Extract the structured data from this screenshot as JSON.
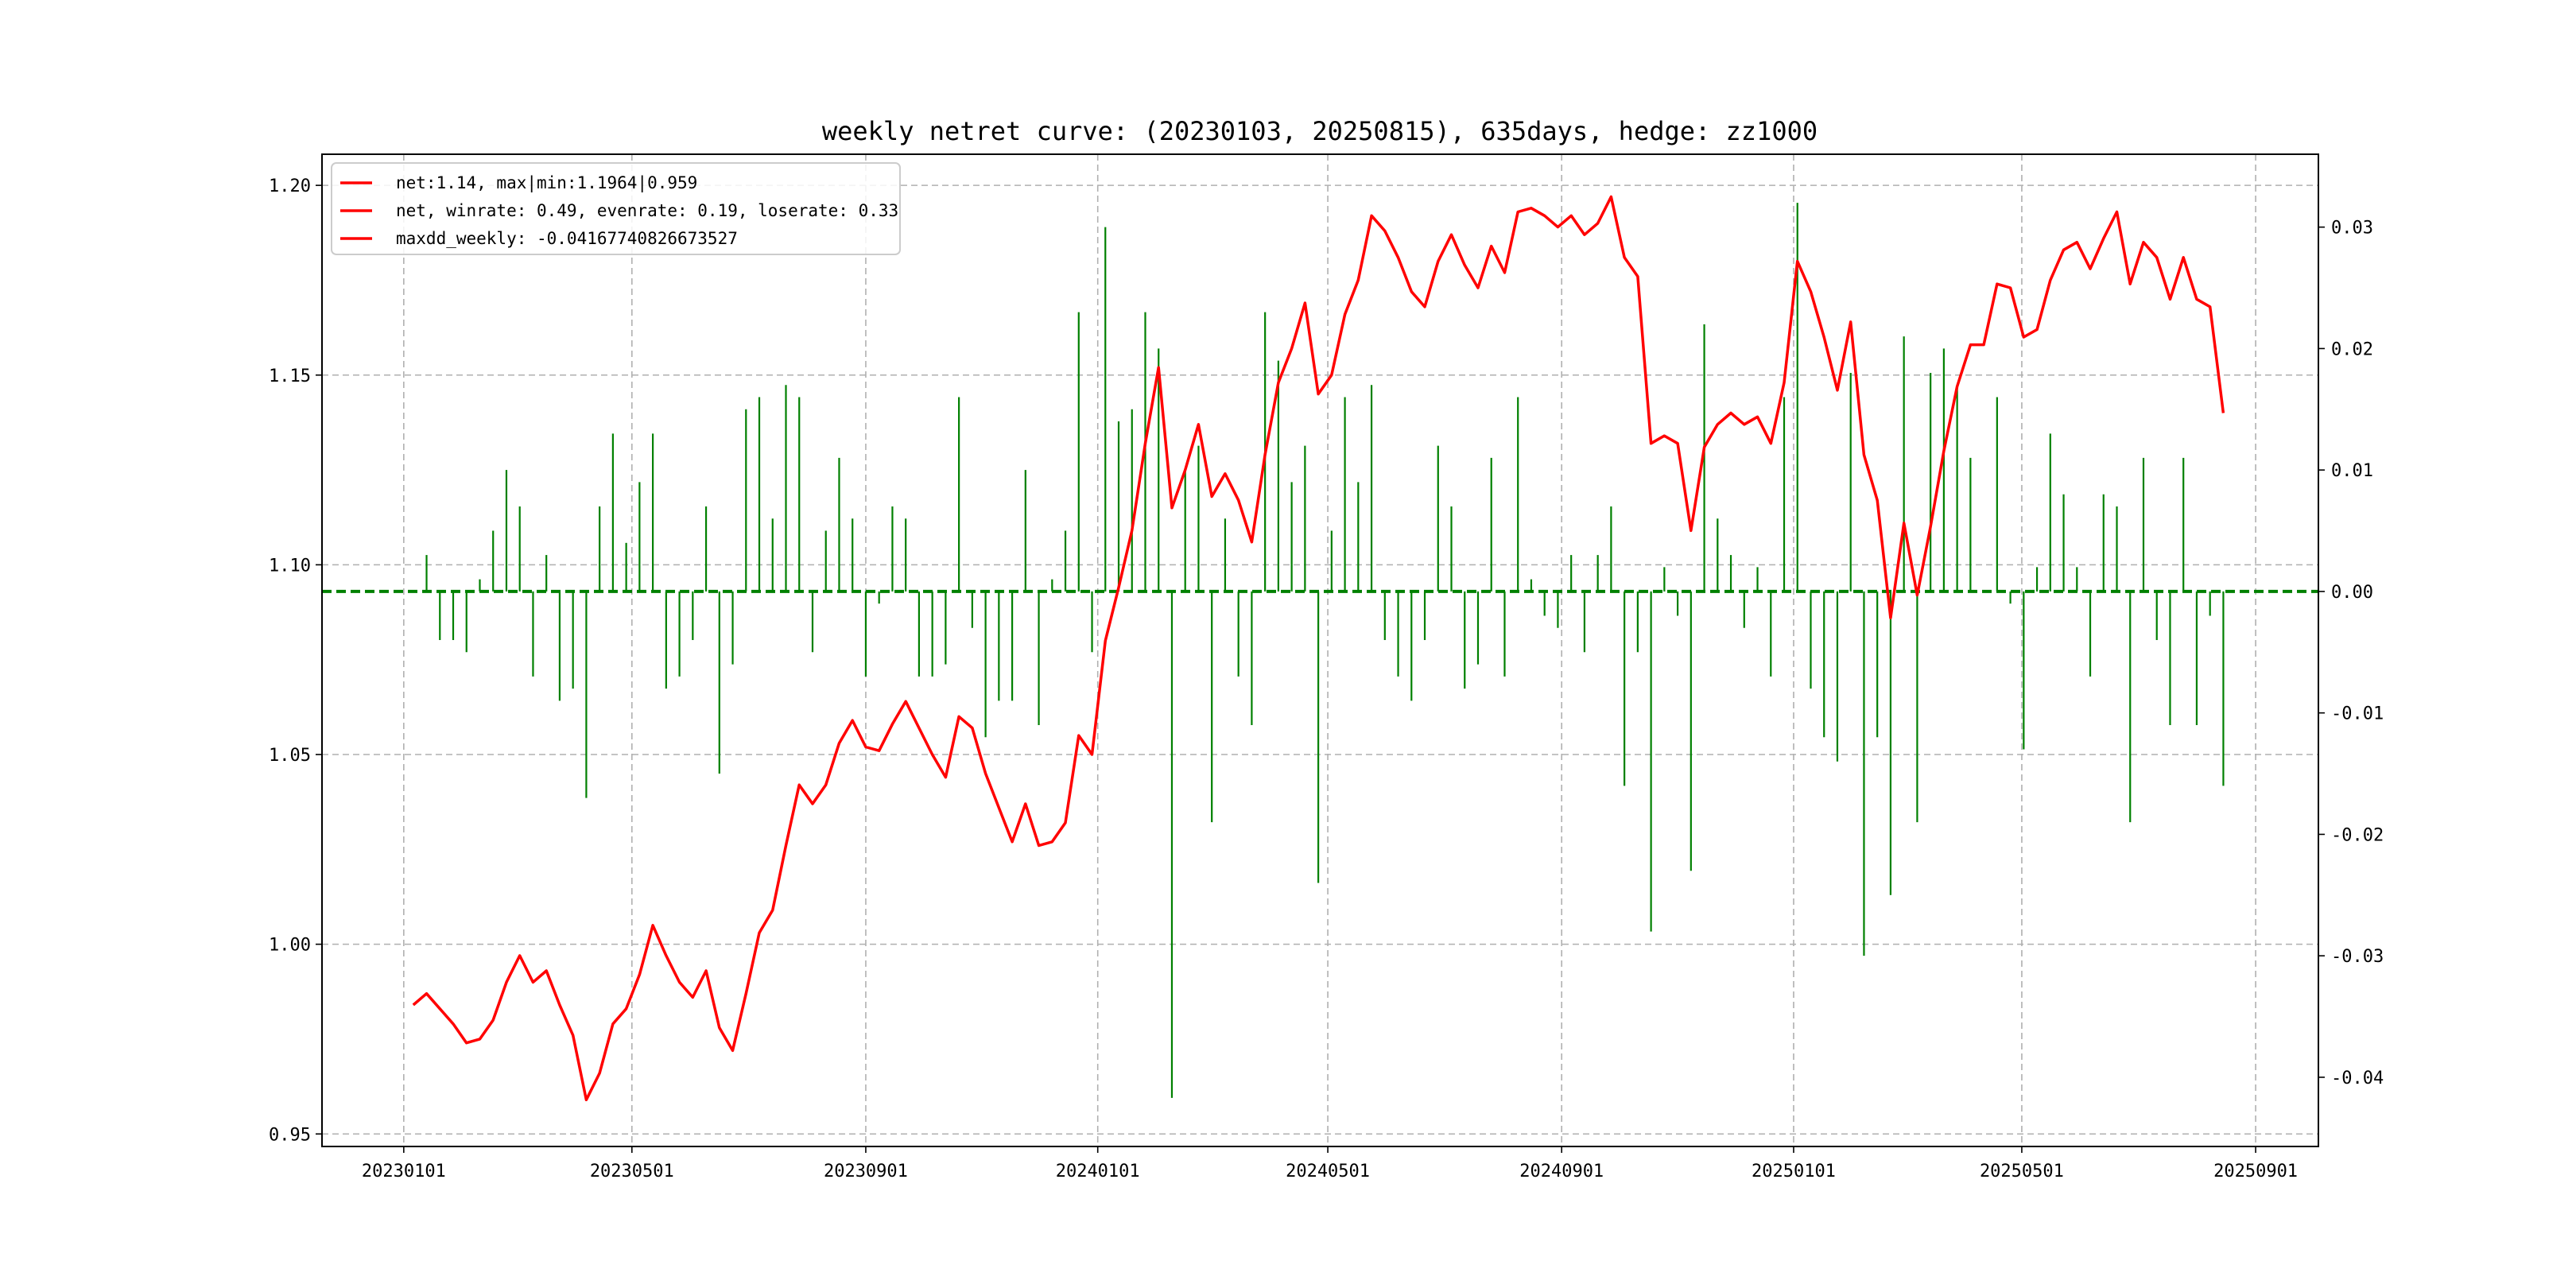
{
  "chart_data": {
    "type": "line+bar",
    "title": "weekly netret curve: (20230103, 20250815), 635days, hedge: zz1000",
    "start_date": "2023-01-06",
    "interval_days": 7,
    "x_ticks": [
      "20230101",
      "20230501",
      "20230901",
      "20240101",
      "20240501",
      "20240901",
      "20250101",
      "20250501",
      "20250901"
    ],
    "x_tick_dates": [
      "2023-01-01",
      "2023-05-01",
      "2023-09-01",
      "2024-01-01",
      "2024-05-01",
      "2024-09-01",
      "2025-01-01",
      "2025-05-01",
      "2025-09-01"
    ],
    "x_range_dates": [
      "2022-11-19",
      "2025-10-04"
    ],
    "left_axis": {
      "ylim": [
        0.9467,
        1.2082
      ],
      "ticks": [
        "0.95",
        "1.00",
        "1.05",
        "1.10",
        "1.15",
        "1.20"
      ]
    },
    "right_axis": {
      "ylim": [
        -0.0457,
        0.036
      ],
      "ticks": [
        "-0.04",
        "-0.03",
        "-0.02",
        "-0.01",
        "0.00",
        "0.01",
        "0.02",
        "0.03"
      ]
    },
    "grid": true,
    "legend_placement": "upper-left",
    "legend": [
      "net:1.14, max|min:1.1964|0.959",
      "net, winrate: 0.49, evenrate: 0.19, loserate: 0.33",
      "maxdd_weekly: -0.04167740826673527"
    ],
    "colors": {
      "net": "#ff0000",
      "weekly": "#008000",
      "zero_line": "#008000",
      "grid": "#b0b0b0"
    },
    "series": [
      {
        "name": "net",
        "axis": "left",
        "kind": "line",
        "values": [
          0.984,
          0.987,
          0.983,
          0.979,
          0.974,
          0.975,
          0.98,
          0.99,
          0.997,
          0.99,
          0.993,
          0.984,
          0.976,
          0.959,
          0.966,
          0.979,
          0.983,
          0.992,
          1.005,
          0.997,
          0.99,
          0.986,
          0.993,
          0.978,
          0.972,
          0.987,
          1.003,
          1.009,
          1.026,
          1.042,
          1.037,
          1.042,
          1.053,
          1.059,
          1.052,
          1.051,
          1.058,
          1.064,
          1.057,
          1.05,
          1.044,
          1.06,
          1.057,
          1.045,
          1.036,
          1.027,
          1.037,
          1.026,
          1.027,
          1.032,
          1.055,
          1.05,
          1.08,
          1.094,
          1.109,
          1.132,
          1.152,
          1.115,
          1.125,
          1.137,
          1.118,
          1.124,
          1.117,
          1.106,
          1.129,
          1.148,
          1.157,
          1.169,
          1.145,
          1.15,
          1.166,
          1.175,
          1.192,
          1.188,
          1.181,
          1.172,
          1.168,
          1.18,
          1.187,
          1.179,
          1.173,
          1.184,
          1.177,
          1.193,
          1.194,
          1.192,
          1.189,
          1.192,
          1.187,
          1.19,
          1.197,
          1.181,
          1.176,
          1.132,
          1.134,
          1.132,
          1.109,
          1.131,
          1.137,
          1.14,
          1.137,
          1.139,
          1.132,
          1.148,
          1.18,
          1.172,
          1.16,
          1.146,
          1.164,
          1.129,
          1.117,
          1.086,
          1.111,
          1.092,
          1.11,
          1.13,
          1.147,
          1.158,
          1.158,
          1.174,
          1.173,
          1.16,
          1.162,
          1.175,
          1.183,
          1.185,
          1.178,
          1.186,
          1.193,
          1.174,
          1.185,
          1.181,
          1.17,
          1.181,
          1.17,
          1.168,
          1.14
        ]
      },
      {
        "name": "weekly_ret",
        "axis": "right",
        "kind": "bar",
        "values": [
          0,
          0.003,
          -0.004,
          -0.004,
          -0.005,
          0.001,
          0.005,
          0.01,
          0.007,
          -0.007,
          0.003,
          -0.009,
          -0.008,
          -0.017,
          0.007,
          0.013,
          0.004,
          0.009,
          0.013,
          -0.008,
          -0.007,
          -0.004,
          0.007,
          -0.015,
          -0.006,
          0.015,
          0.016,
          0.006,
          0.017,
          0.016,
          -0.005,
          0.005,
          0.011,
          0.006,
          -0.007,
          -0.001,
          0.007,
          0.006,
          -0.007,
          -0.007,
          -0.006,
          0.016,
          -0.003,
          -0.012,
          -0.009,
          -0.009,
          0.01,
          -0.011,
          0.001,
          0.005,
          0.023,
          -0.005,
          0.03,
          0.014,
          0.015,
          0.023,
          0.02,
          -0.0417,
          0.01,
          0.012,
          -0.019,
          0.006,
          -0.007,
          -0.011,
          0.023,
          0.019,
          0.009,
          0.012,
          -0.024,
          0.005,
          0.016,
          0.009,
          0.017,
          -0.004,
          -0.007,
          -0.009,
          -0.004,
          0.012,
          0.007,
          -0.008,
          -0.006,
          0.011,
          -0.007,
          0.016,
          0.001,
          -0.002,
          -0.003,
          0.003,
          -0.005,
          0.003,
          0.007,
          -0.016,
          -0.005,
          -0.028,
          0.002,
          -0.002,
          -0.023,
          0.022,
          0.006,
          0.003,
          -0.003,
          0.002,
          -0.007,
          0.016,
          0.032,
          -0.008,
          -0.012,
          -0.014,
          0.018,
          -0.03,
          -0.012,
          -0.025,
          0.021,
          -0.019,
          0.018,
          0.02,
          0.017,
          0.011,
          0,
          0.016,
          -0.001,
          -0.013,
          0.002,
          0.013,
          0.008,
          0.002,
          -0.007,
          0.008,
          0.007,
          -0.019,
          0.011,
          -0.004,
          -0.011,
          0.011,
          -0.011,
          -0.002,
          -0.016
        ]
      }
    ]
  }
}
